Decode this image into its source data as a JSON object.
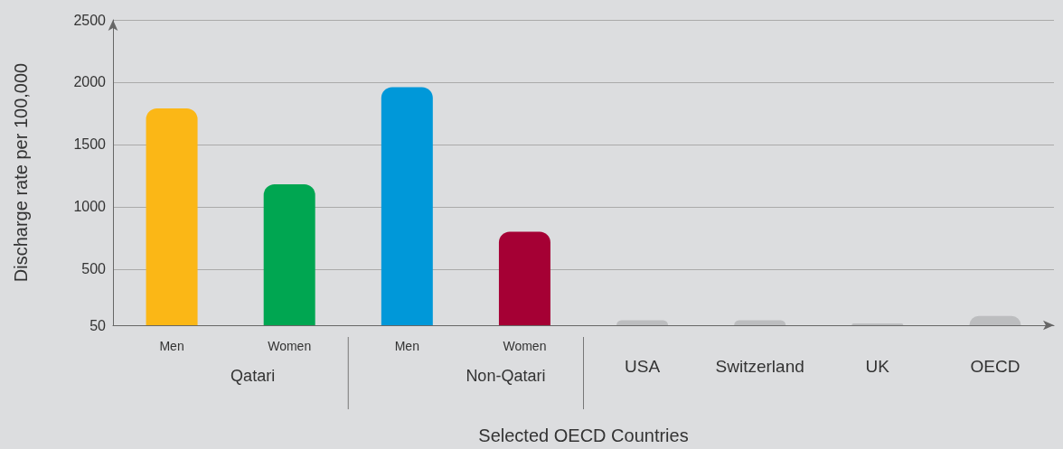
{
  "chart_data": {
    "type": "bar",
    "xlabel": "Selected OECD Countries",
    "ylabel": "Discharge rate per 100,000",
    "categories": [
      "Men",
      "Women",
      "Men",
      "Women",
      "USA",
      "Switzerland",
      "UK",
      "OECD"
    ],
    "values": [
      1790,
      1180,
      1960,
      800,
      90,
      90,
      65,
      125
    ],
    "colors": [
      "#fbb716",
      "#00a651",
      "#0098d9",
      "#a50034",
      "#bcbdbf",
      "#bcbdbf",
      "#bcbdbf",
      "#bcbdbf"
    ],
    "ylim": [
      50,
      2500
    ],
    "yticks": [
      50,
      500,
      1000,
      1500,
      2000,
      2500
    ],
    "grid": "y",
    "annotations": [
      "Qatari",
      "Non-Qatari"
    ]
  }
}
